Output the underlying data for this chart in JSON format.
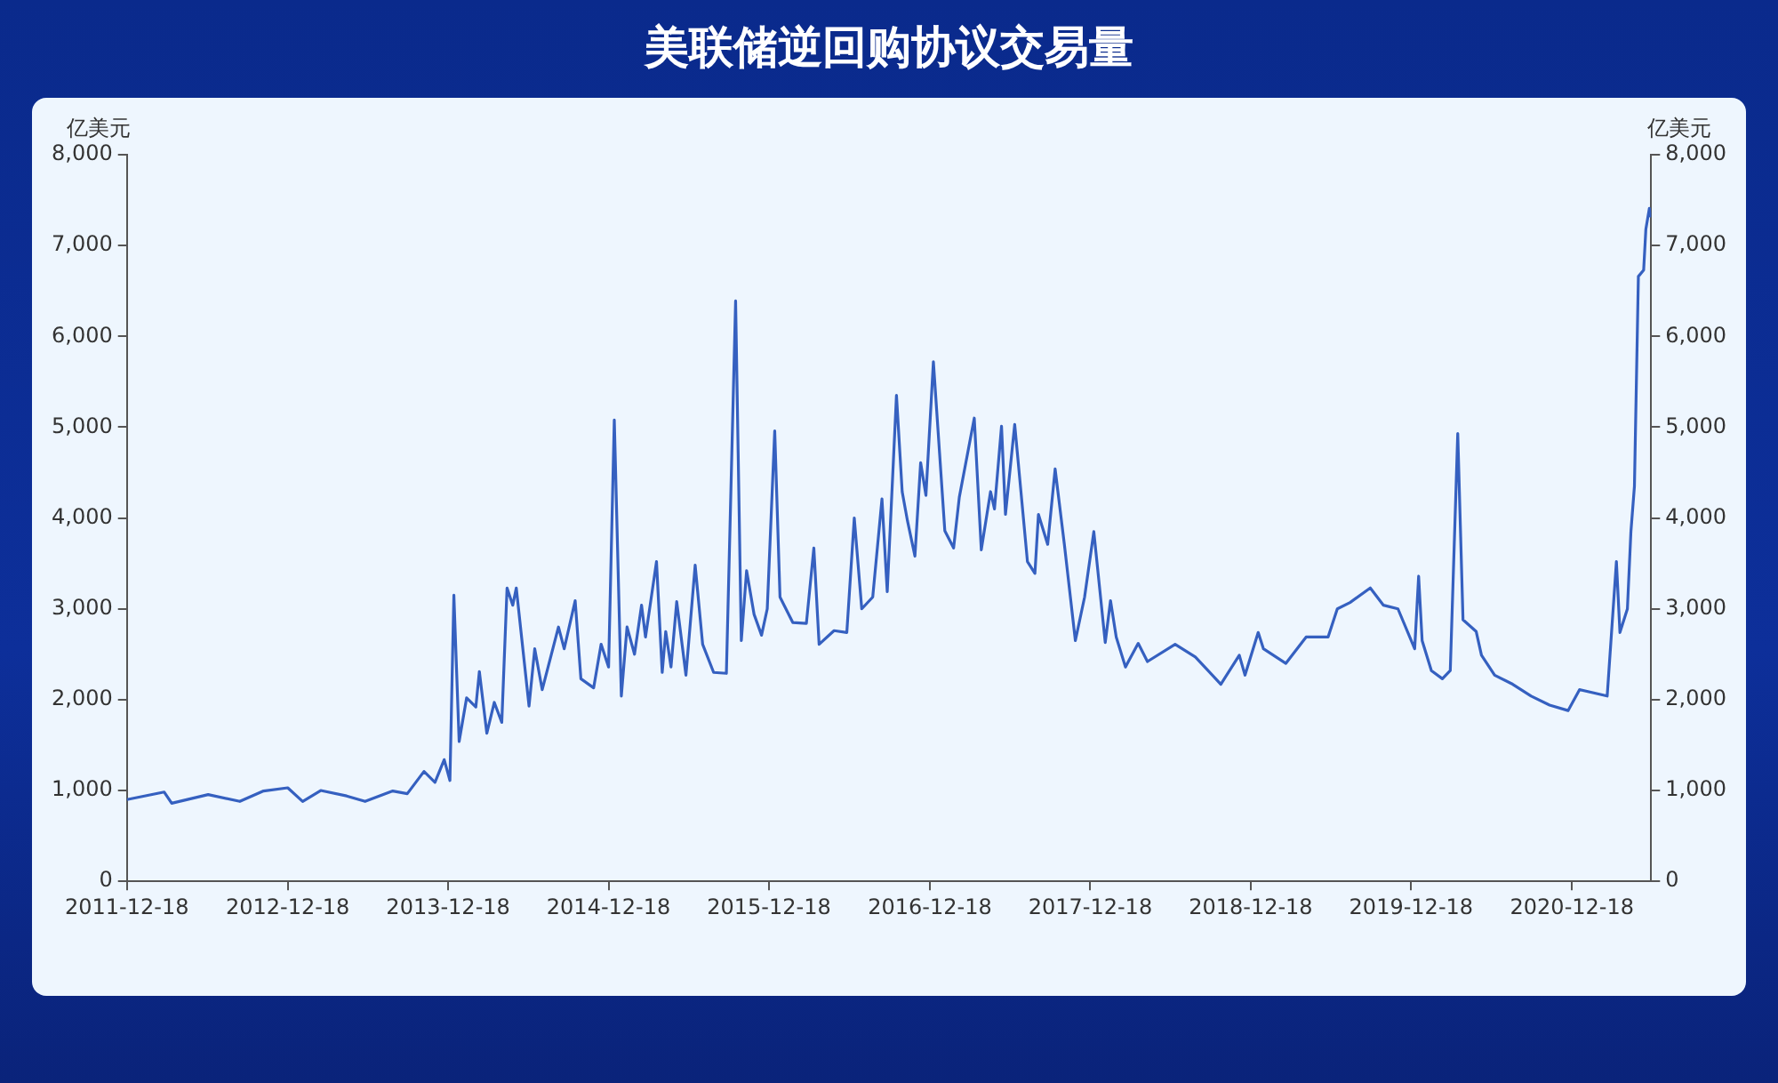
{
  "chart_data": {
    "type": "line",
    "title": "美联储逆回购协议交易量",
    "ylabel": "亿美元",
    "y2label": "亿美元",
    "grid": false,
    "legend": false,
    "marker": "none",
    "line_style": "solid",
    "xlim": [
      "2011-12-18",
      "2021-06-16"
    ],
    "xticks": [
      "2011-12-18",
      "2012-12-18",
      "2013-12-18",
      "2014-12-18",
      "2015-12-18",
      "2016-12-18",
      "2017-12-18",
      "2018-12-18",
      "2019-12-18",
      "2020-12-18"
    ],
    "ylim": [
      0,
      8000
    ],
    "yticks": [
      0,
      {
        "value": 1000,
        "label": "1,000"
      },
      {
        "value": 2000,
        "label": "2,000"
      },
      {
        "value": 3000,
        "label": "3,000"
      },
      {
        "value": 4000,
        "label": "4,000"
      },
      {
        "value": 5000,
        "label": "5,000"
      },
      {
        "value": 6000,
        "label": "6,000"
      },
      {
        "value": 7000,
        "label": "7,000"
      },
      {
        "value": 8000,
        "label": "8,000"
      }
    ],
    "y2lim": [
      0,
      8000
    ],
    "y2ticks": [
      0,
      {
        "value": 1000,
        "label": "1,000"
      },
      {
        "value": 2000,
        "label": "2,000"
      },
      {
        "value": 3000,
        "label": "3,000"
      },
      {
        "value": 4000,
        "label": "4,000"
      },
      {
        "value": 5000,
        "label": "5,000"
      },
      {
        "value": 6000,
        "label": "6,000"
      },
      {
        "value": 7000,
        "label": "7,000"
      },
      {
        "value": 8000,
        "label": "8,000"
      }
    ],
    "series": [
      {
        "color": "#3560c0",
        "x": [
          "2011-12-18",
          "2012-03-12",
          "2012-03-29",
          "2012-06-20",
          "2012-08-31",
          "2012-10-24",
          "2012-12-18",
          "2013-01-21",
          "2013-03-03",
          "2013-05-01",
          "2013-06-12",
          "2013-08-14",
          "2013-09-16",
          "2013-10-24",
          "2013-11-18",
          "2013-12-09",
          "2013-12-22",
          "2013-12-31",
          "2014-01-12",
          "2014-01-29",
          "2014-02-19",
          "2014-02-27",
          "2014-03-16",
          "2014-04-02",
          "2014-04-19",
          "2014-05-01",
          "2014-05-14",
          "2014-05-22",
          "2014-06-20",
          "2014-07-03",
          "2014-07-20",
          "2014-08-26",
          "2014-09-08",
          "2014-10-03",
          "2014-10-16",
          "2014-11-14",
          "2014-12-01",
          "2014-12-18",
          "2014-12-31",
          "2015-01-16",
          "2015-01-29",
          "2015-02-15",
          "2015-03-03",
          "2015-03-12",
          "2015-04-06",
          "2015-04-19",
          "2015-04-27",
          "2015-05-09",
          "2015-05-22",
          "2015-06-12",
          "2015-07-03",
          "2015-07-20",
          "2015-08-14",
          "2015-09-12",
          "2015-10-03",
          "2015-10-16",
          "2015-10-28",
          "2015-11-14",
          "2015-12-01",
          "2015-12-14",
          "2015-12-31",
          "2016-01-12",
          "2016-02-10",
          "2016-03-12",
          "2016-03-29",
          "2016-04-10",
          "2016-05-14",
          "2016-06-12",
          "2016-06-29",
          "2016-07-16",
          "2016-08-10",
          "2016-08-31",
          "2016-09-12",
          "2016-10-03",
          "2016-10-16",
          "2016-10-28",
          "2016-11-14",
          "2016-11-27",
          "2016-12-09",
          "2016-12-26",
          "2017-01-21",
          "2017-02-10",
          "2017-02-23",
          "2017-03-29",
          "2017-04-14",
          "2017-05-05",
          "2017-05-14",
          "2017-05-30",
          "2017-06-08",
          "2017-06-29",
          "2017-07-28",
          "2017-08-14",
          "2017-08-22",
          "2017-09-12",
          "2017-09-29",
          "2017-10-20",
          "2017-11-14",
          "2017-12-05",
          "2017-12-26",
          "2018-01-21",
          "2018-02-02",
          "2018-02-15",
          "2018-03-08",
          "2018-04-06",
          "2018-04-27",
          "2018-06-29",
          "2018-08-14",
          "2018-10-11",
          "2018-11-22",
          "2018-12-05",
          "2019-01-04",
          "2019-01-16",
          "2019-03-08",
          "2019-04-23",
          "2019-06-12",
          "2019-07-03",
          "2019-08-01",
          "2019-09-16",
          "2019-10-16",
          "2019-11-18",
          "2019-12-26",
          "2020-01-04",
          "2020-01-12",
          "2020-02-02",
          "2020-02-27",
          "2020-03-16",
          "2020-04-02",
          "2020-04-14",
          "2020-05-14",
          "2020-05-26",
          "2020-06-25",
          "2020-08-05",
          "2020-09-16",
          "2020-10-28",
          "2020-12-09",
          "2021-01-04",
          "2021-03-08",
          "2021-03-29",
          "2021-04-06",
          "2021-04-23",
          "2021-05-01",
          "2021-05-09",
          "2021-05-18",
          "2021-05-30",
          "2021-06-04",
          "2021-06-12",
          "2021-06-16"
        ],
        "values": [
          900,
          983,
          860,
          955,
          880,
          995,
          1030,
          880,
          1000,
          940,
          880,
          995,
          965,
          1210,
          1090,
          1340,
          1110,
          3150,
          1540,
          2020,
          1920,
          2310,
          1630,
          1970,
          1750,
          3230,
          3040,
          3230,
          1930,
          2560,
          2110,
          2800,
          2560,
          3090,
          2230,
          2130,
          2610,
          2360,
          5080,
          2040,
          2800,
          2500,
          3040,
          2690,
          3520,
          2300,
          2750,
          2360,
          3080,
          2270,
          3480,
          2610,
          2300,
          2290,
          6390,
          2650,
          3420,
          2940,
          2710,
          3000,
          4960,
          3130,
          2850,
          2840,
          3670,
          2610,
          2760,
          2740,
          4000,
          3000,
          3130,
          4210,
          3190,
          5350,
          4290,
          3970,
          3580,
          4610,
          4250,
          5720,
          3860,
          3670,
          4230,
          5100,
          3650,
          4290,
          4100,
          5010,
          4040,
          5030,
          3520,
          3390,
          4040,
          3710,
          4540,
          3710,
          2650,
          3130,
          3850,
          2630,
          3090,
          2690,
          2360,
          2620,
          2420,
          2610,
          2470,
          2170,
          2490,
          2270,
          2740,
          2560,
          2400,
          2690,
          2690,
          3000,
          3070,
          3230,
          3040,
          3000,
          2560,
          3360,
          2650,
          2320,
          2230,
          2320,
          4930,
          2880,
          2750,
          2490,
          2270,
          2170,
          2040,
          1940,
          1880,
          2110,
          2040,
          3520,
          2740,
          3000,
          3850,
          4350,
          6660,
          6730,
          7180,
          7410,
          7310
        ]
      }
    ]
  }
}
